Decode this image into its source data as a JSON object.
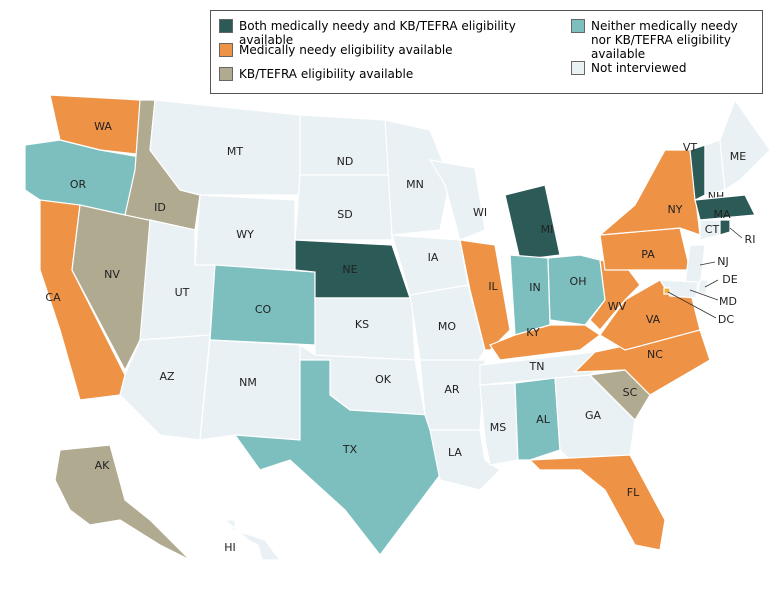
{
  "legend": [
    {
      "label": "Both medically needy and KB/TEFRA eligibility available",
      "color": "#2b5a57"
    },
    {
      "label": "Medically needy eligibility available",
      "color": "#ee9345"
    },
    {
      "label": "KB/TEFRA eligibility available",
      "color": "#b0aa90"
    },
    {
      "label": "Neither medically needy nor KB/TEFRA eligibility available",
      "color": "#7dbfbf"
    },
    {
      "label": "Not interviewed",
      "color": "#e9f1f5"
    }
  ],
  "states": [
    {
      "label": "WA",
      "color": "#ee9345"
    },
    {
      "label": "OR",
      "color": "#7dbfbf"
    },
    {
      "label": "CA",
      "color": "#ee9345"
    },
    {
      "label": "ID",
      "color": "#b0aa90"
    },
    {
      "label": "NV",
      "color": "#b0aa90"
    },
    {
      "label": "MT",
      "color": "#e9f1f5"
    },
    {
      "label": "WY",
      "color": "#e9f1f5"
    },
    {
      "label": "UT",
      "color": "#e9f1f5"
    },
    {
      "label": "AZ",
      "color": "#e9f1f5"
    },
    {
      "label": "CO",
      "color": "#7dbfbf"
    },
    {
      "label": "NM",
      "color": "#e9f1f5"
    },
    {
      "label": "ND",
      "color": "#e9f1f5"
    },
    {
      "label": "SD",
      "color": "#e9f1f5"
    },
    {
      "label": "NE",
      "color": "#2b5a57"
    },
    {
      "label": "KS",
      "color": "#e9f1f5"
    },
    {
      "label": "OK",
      "color": "#e9f1f5"
    },
    {
      "label": "TX",
      "color": "#7dbfbf"
    },
    {
      "label": "MN",
      "color": "#e9f1f5"
    },
    {
      "label": "IA",
      "color": "#e9f1f5"
    },
    {
      "label": "MO",
      "color": "#e9f1f5"
    },
    {
      "label": "AR",
      "color": "#e9f1f5"
    },
    {
      "label": "LA",
      "color": "#e9f1f5"
    },
    {
      "label": "WI",
      "color": "#e9f1f5"
    },
    {
      "label": "IL",
      "color": "#ee9345"
    },
    {
      "label": "MI",
      "color": "#2b5a57"
    },
    {
      "label": "IN",
      "color": "#7dbfbf"
    },
    {
      "label": "OH",
      "color": "#7dbfbf"
    },
    {
      "label": "KY",
      "color": "#ee9345"
    },
    {
      "label": "TN",
      "color": "#e9f1f5"
    },
    {
      "label": "MS",
      "color": "#e9f1f5"
    },
    {
      "label": "AL",
      "color": "#7dbfbf"
    },
    {
      "label": "GA",
      "color": "#e9f1f5"
    },
    {
      "label": "FL",
      "color": "#ee9345"
    },
    {
      "label": "SC",
      "color": "#b0aa90"
    },
    {
      "label": "NC",
      "color": "#ee9345"
    },
    {
      "label": "VA",
      "color": "#ee9345"
    },
    {
      "label": "WV",
      "color": "#ee9345"
    },
    {
      "label": "PA",
      "color": "#ee9345"
    },
    {
      "label": "NY",
      "color": "#ee9345"
    },
    {
      "label": "VT",
      "color": "#2b5a57"
    },
    {
      "label": "NH",
      "color": "#e9f1f5"
    },
    {
      "label": "ME",
      "color": "#e9f1f5"
    },
    {
      "label": "MA",
      "color": "#2b5a57"
    },
    {
      "label": "CT",
      "color": "#e9f1f5"
    },
    {
      "label": "RI",
      "color": "#2b5a57"
    },
    {
      "label": "NJ",
      "color": "#e9f1f5"
    },
    {
      "label": "DE",
      "color": "#e9f1f5"
    },
    {
      "label": "MD",
      "color": "#e9f1f5"
    },
    {
      "label": "DC",
      "color": "#f0b43c"
    },
    {
      "label": "AK",
      "color": "#b0aa90"
    },
    {
      "label": "HI",
      "color": "#e9f1f5"
    }
  ]
}
